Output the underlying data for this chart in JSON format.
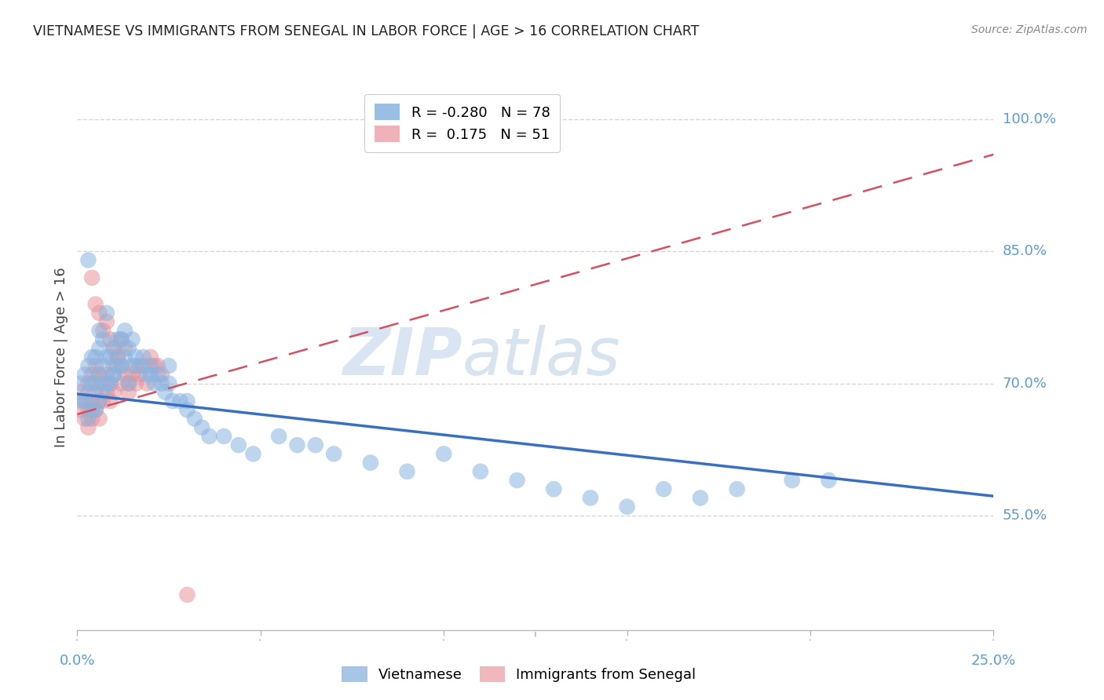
{
  "title": "VIETNAMESE VS IMMIGRANTS FROM SENEGAL IN LABOR FORCE | AGE > 16 CORRELATION CHART",
  "source": "Source: ZipAtlas.com",
  "ylabel": "In Labor Force | Age > 16",
  "watermark": "ZIPatlas",
  "blue_color": "#8ab4e0",
  "pink_color": "#e8929a",
  "trend_blue_color": "#3a6fc0",
  "trend_pink_color": "#d45060",
  "grid_color": "#cccccc",
  "axis_label_color": "#5b9bd5",
  "xlim": [
    0.0,
    0.25
  ],
  "ylim": [
    0.42,
    1.04
  ],
  "ytick_vals": [
    0.55,
    0.7,
    0.85,
    1.0
  ],
  "ytick_labels": [
    "55.0%",
    "70.0%",
    "85.0%",
    "100.0%"
  ],
  "trend_blue_x0": 0.0,
  "trend_blue_y0": 0.688,
  "trend_blue_x1": 0.25,
  "trend_blue_y1": 0.572,
  "trend_pink_x0": 0.0,
  "trend_pink_y0": 0.665,
  "trend_pink_x1": 0.25,
  "trend_pink_y1": 0.96,
  "blue_scatter_x": [
    0.001,
    0.001,
    0.002,
    0.002,
    0.003,
    0.003,
    0.003,
    0.004,
    0.004,
    0.004,
    0.005,
    0.005,
    0.005,
    0.006,
    0.006,
    0.006,
    0.007,
    0.007,
    0.007,
    0.008,
    0.008,
    0.009,
    0.009,
    0.01,
    0.01,
    0.011,
    0.011,
    0.012,
    0.012,
    0.013,
    0.013,
    0.014,
    0.015,
    0.015,
    0.016,
    0.017,
    0.018,
    0.019,
    0.02,
    0.021,
    0.022,
    0.023,
    0.024,
    0.025,
    0.026,
    0.028,
    0.03,
    0.032,
    0.034,
    0.036,
    0.04,
    0.044,
    0.048,
    0.055,
    0.06,
    0.065,
    0.07,
    0.08,
    0.09,
    0.1,
    0.11,
    0.12,
    0.13,
    0.14,
    0.15,
    0.16,
    0.17,
    0.18,
    0.195,
    0.205,
    0.003,
    0.006,
    0.008,
    0.01,
    0.014,
    0.02,
    0.025,
    0.03
  ],
  "blue_scatter_y": [
    0.68,
    0.7,
    0.68,
    0.71,
    0.66,
    0.69,
    0.72,
    0.67,
    0.7,
    0.73,
    0.67,
    0.7,
    0.73,
    0.68,
    0.71,
    0.74,
    0.69,
    0.72,
    0.75,
    0.7,
    0.73,
    0.7,
    0.73,
    0.71,
    0.74,
    0.72,
    0.75,
    0.72,
    0.75,
    0.73,
    0.76,
    0.74,
    0.72,
    0.75,
    0.73,
    0.72,
    0.73,
    0.71,
    0.72,
    0.7,
    0.71,
    0.7,
    0.69,
    0.7,
    0.68,
    0.68,
    0.67,
    0.66,
    0.65,
    0.64,
    0.64,
    0.63,
    0.62,
    0.64,
    0.63,
    0.63,
    0.62,
    0.61,
    0.6,
    0.62,
    0.6,
    0.59,
    0.58,
    0.57,
    0.56,
    0.58,
    0.57,
    0.58,
    0.59,
    0.59,
    0.84,
    0.76,
    0.78,
    0.71,
    0.7,
    0.71,
    0.72,
    0.68
  ],
  "pink_scatter_x": [
    0.001,
    0.001,
    0.002,
    0.002,
    0.003,
    0.003,
    0.003,
    0.004,
    0.004,
    0.004,
    0.005,
    0.005,
    0.005,
    0.006,
    0.006,
    0.006,
    0.007,
    0.007,
    0.008,
    0.008,
    0.009,
    0.009,
    0.01,
    0.01,
    0.011,
    0.012,
    0.012,
    0.013,
    0.014,
    0.015,
    0.016,
    0.017,
    0.018,
    0.019,
    0.02,
    0.021,
    0.022,
    0.023,
    0.004,
    0.005,
    0.006,
    0.007,
    0.008,
    0.009,
    0.01,
    0.011,
    0.012,
    0.013,
    0.014,
    0.016,
    0.03
  ],
  "pink_scatter_y": [
    0.67,
    0.69,
    0.66,
    0.68,
    0.65,
    0.67,
    0.7,
    0.66,
    0.68,
    0.71,
    0.67,
    0.69,
    0.72,
    0.66,
    0.68,
    0.71,
    0.68,
    0.7,
    0.69,
    0.71,
    0.68,
    0.7,
    0.69,
    0.72,
    0.73,
    0.7,
    0.72,
    0.71,
    0.7,
    0.71,
    0.7,
    0.71,
    0.72,
    0.7,
    0.73,
    0.72,
    0.72,
    0.71,
    0.82,
    0.79,
    0.78,
    0.76,
    0.77,
    0.75,
    0.74,
    0.73,
    0.75,
    0.74,
    0.69,
    0.72,
    0.46
  ]
}
